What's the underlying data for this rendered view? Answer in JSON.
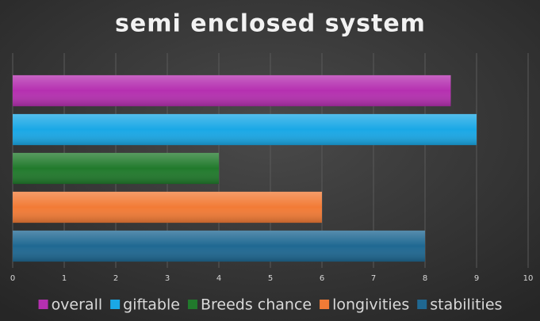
{
  "chart_data": {
    "type": "hbar",
    "title": "semi enclosed system",
    "series": [
      {
        "name": "overall",
        "color": "#b530b0",
        "values": [
          8.5
        ]
      },
      {
        "name": "giftable",
        "color": "#1aa8e6",
        "values": [
          9
        ]
      },
      {
        "name": "Breeds chance",
        "color": "#217a2c",
        "values": [
          4
        ]
      },
      {
        "name": "longivities",
        "color": "#f27b36",
        "values": [
          6
        ]
      },
      {
        "name": "stabilities",
        "color": "#1f6892",
        "values": [
          8
        ]
      }
    ],
    "xlim": [
      0,
      10
    ],
    "xticks": [
      0,
      1,
      2,
      3,
      4,
      5,
      6,
      7,
      8,
      9,
      10
    ],
    "grid": true,
    "legend": "bottom"
  }
}
